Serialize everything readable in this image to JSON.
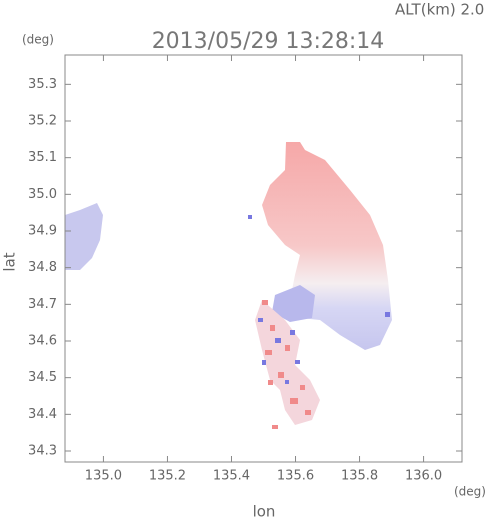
{
  "chart_data": {
    "type": "image",
    "title": "2013/05/29 13:28:14",
    "subtitle": "ALT(km) 2.0",
    "x_label": "lon",
    "y_label": "lat",
    "x_unit": "(deg)",
    "y_unit": "(deg)",
    "xlim": [
      134.88,
      136.12
    ],
    "ylim": [
      34.27,
      35.38
    ],
    "xticks": [
      {
        "value": 135,
        "label": "135.0"
      },
      135.2,
      135.4,
      135.6,
      135.8,
      {
        "value": 136,
        "label": "136.0"
      }
    ],
    "yticks": [
      34.3,
      34.4,
      34.5,
      34.6,
      34.7,
      34.8,
      34.9,
      {
        "value": 35,
        "label": "35.0"
      },
      35.1,
      35.2,
      35.3
    ]
  }
}
